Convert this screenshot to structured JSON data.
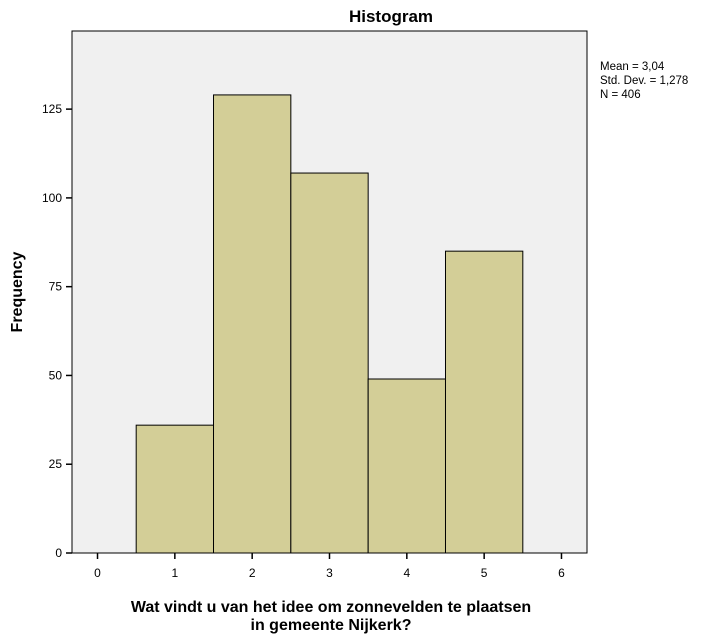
{
  "chart_data": {
    "type": "bar",
    "title": "Histogram",
    "xlabel_lines": [
      "Wat vindt u van het idee om zonnevelden te plaatsen",
      "in gemeente Nijkerk?"
    ],
    "ylabel": "Frequency",
    "bins": [
      {
        "start": 0.5,
        "end": 1.5,
        "value": 36
      },
      {
        "start": 1.5,
        "end": 2.5,
        "value": 129
      },
      {
        "start": 2.5,
        "end": 3.5,
        "value": 107
      },
      {
        "start": 3.5,
        "end": 4.5,
        "value": 49
      },
      {
        "start": 4.5,
        "end": 5.5,
        "value": 85
      }
    ],
    "xlim": [
      -0.33,
      6.33
    ],
    "ylim": [
      0,
      147
    ],
    "x_ticks": [
      "0",
      "1",
      "2",
      "3",
      "4",
      "5",
      "6"
    ],
    "y_ticks": [
      "0",
      "25",
      "50",
      "75",
      "100",
      "125"
    ],
    "stats": [
      "Mean = 3,04",
      "Std. Dev. = 1,278",
      "N = 406"
    ],
    "grid": false,
    "colors": {
      "plot_background": "#f0f0f0",
      "bar_fill": "#d3ce97",
      "bar_stroke": "#000000"
    }
  }
}
